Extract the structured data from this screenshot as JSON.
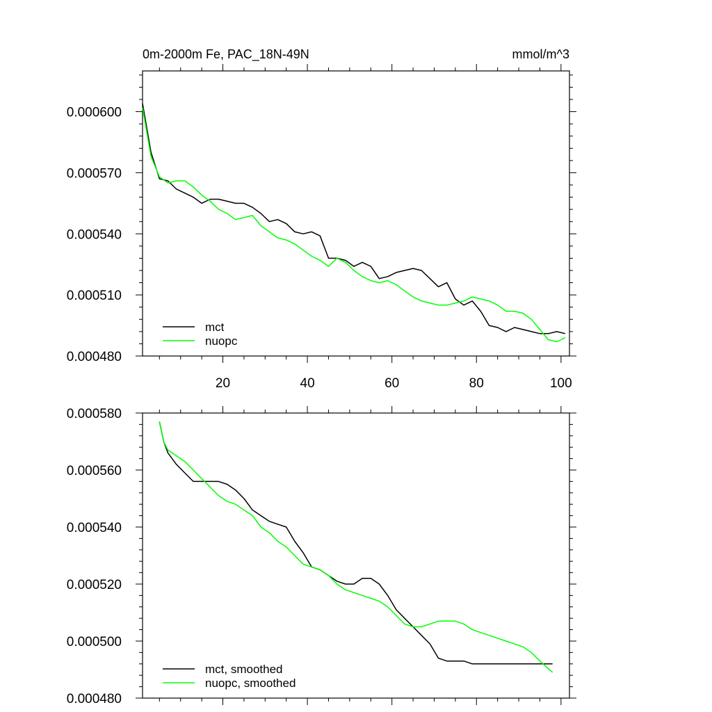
{
  "chart_data": [
    {
      "type": "line",
      "title": "0m-2000m Fe, PAC_18N-49N",
      "units": "mmol/m^3",
      "xlim": [
        1,
        102
      ],
      "ylim": [
        0.00048,
        0.00062
      ],
      "x_ticks": [
        20,
        40,
        60,
        80,
        100
      ],
      "y_ticks": [
        0.00048,
        0.00051,
        0.00054,
        0.00057,
        0.0006
      ],
      "y_tick_labels": [
        "0.000480",
        "0.000510",
        "0.000540",
        "0.000570",
        "0.000600"
      ],
      "x_tick_labels": [
        "20",
        "40",
        "60",
        "80",
        "100"
      ],
      "legend_position": "bottom-left",
      "series": [
        {
          "name": "mct",
          "color": "#000000",
          "x": [
            1,
            3,
            5,
            7,
            9,
            11,
            13,
            15,
            17,
            19,
            21,
            23,
            25,
            27,
            29,
            31,
            33,
            35,
            37,
            39,
            41,
            43,
            45,
            47,
            49,
            51,
            53,
            55,
            57,
            59,
            61,
            63,
            65,
            67,
            69,
            71,
            73,
            75,
            77,
            79,
            81,
            83,
            85,
            87,
            89,
            91,
            93,
            95,
            97,
            99,
            101
          ],
          "y": [
            0.000604,
            0.00058,
            0.000567,
            0.000566,
            0.000562,
            0.00056,
            0.000558,
            0.000555,
            0.000557,
            0.000557,
            0.000556,
            0.000555,
            0.000555,
            0.000553,
            0.00055,
            0.000546,
            0.000547,
            0.000545,
            0.000541,
            0.00054,
            0.000541,
            0.000539,
            0.000528,
            0.000528,
            0.000527,
            0.000524,
            0.000526,
            0.000524,
            0.000518,
            0.000519,
            0.000521,
            0.000522,
            0.000523,
            0.000522,
            0.000518,
            0.000514,
            0.000516,
            0.000508,
            0.000505,
            0.000507,
            0.000502,
            0.000495,
            0.000494,
            0.000492,
            0.000494,
            0.000493,
            0.000492,
            0.000491,
            0.000491,
            0.000492,
            0.000491
          ]
        },
        {
          "name": "nuopc",
          "color": "#00ff00",
          "x": [
            1,
            3,
            5,
            7,
            9,
            11,
            13,
            15,
            17,
            19,
            21,
            23,
            25,
            27,
            29,
            31,
            33,
            35,
            37,
            39,
            41,
            43,
            45,
            47,
            49,
            51,
            53,
            55,
            57,
            59,
            61,
            63,
            65,
            67,
            69,
            71,
            73,
            75,
            77,
            79,
            81,
            83,
            85,
            87,
            89,
            91,
            93,
            95,
            97,
            99,
            101
          ],
          "y": [
            0.000602,
            0.000578,
            0.000568,
            0.000565,
            0.000566,
            0.000566,
            0.000563,
            0.000559,
            0.000556,
            0.000552,
            0.00055,
            0.000547,
            0.000548,
            0.000549,
            0.000544,
            0.000541,
            0.000538,
            0.000537,
            0.000535,
            0.000532,
            0.000529,
            0.000527,
            0.000524,
            0.000528,
            0.000526,
            0.000522,
            0.000519,
            0.000517,
            0.000516,
            0.000517,
            0.000515,
            0.000512,
            0.000509,
            0.000507,
            0.000506,
            0.000505,
            0.000505,
            0.000506,
            0.000507,
            0.000509,
            0.000508,
            0.000507,
            0.000505,
            0.000502,
            0.000502,
            0.000501,
            0.000498,
            0.000493,
            0.000488,
            0.000487,
            0.000489
          ]
        }
      ]
    },
    {
      "type": "line",
      "title": "",
      "xlim": [
        1,
        102
      ],
      "ylim": [
        0.00048,
        0.00058
      ],
      "x_ticks": [
        20,
        40,
        60,
        80,
        100
      ],
      "y_ticks": [
        0.00048,
        0.0005,
        0.00052,
        0.00054,
        0.00056,
        0.00058
      ],
      "y_tick_labels": [
        "0.000480",
        "0.000500",
        "0.000520",
        "0.000540",
        "0.000560",
        "0.000580"
      ],
      "legend_position": "bottom-left",
      "series": [
        {
          "name": "mct, smoothed",
          "color": "#000000",
          "x": [
            5,
            6,
            7,
            9,
            11,
            13,
            15,
            17,
            19,
            21,
            23,
            25,
            27,
            29,
            31,
            33,
            35,
            37,
            39,
            41,
            43,
            45,
            47,
            49,
            51,
            53,
            55,
            57,
            59,
            61,
            63,
            65,
            67,
            69,
            71,
            73,
            75,
            77,
            79,
            81,
            83,
            85,
            87,
            89,
            91,
            93,
            95,
            98
          ],
          "y": [
            0.000577,
            0.00057,
            0.000566,
            0.000562,
            0.000559,
            0.000556,
            0.000556,
            0.000556,
            0.000556,
            0.000555,
            0.000553,
            0.00055,
            0.000546,
            0.000544,
            0.000542,
            0.000541,
            0.00054,
            0.000535,
            0.000531,
            0.000526,
            0.000525,
            0.000523,
            0.000521,
            0.00052,
            0.00052,
            0.000522,
            0.000522,
            0.00052,
            0.000516,
            0.000511,
            0.000508,
            0.000505,
            0.000502,
            0.000499,
            0.000494,
            0.000493,
            0.000493,
            0.000493,
            0.000492,
            0.000492,
            0.000492,
            0.000492,
            0.000492,
            0.000492,
            0.000492,
            0.000492,
            0.000492,
            0.000492
          ]
        },
        {
          "name": "nuopc, smoothed",
          "color": "#00ff00",
          "x": [
            5,
            6,
            7,
            9,
            11,
            13,
            15,
            17,
            19,
            21,
            23,
            25,
            27,
            29,
            31,
            33,
            35,
            37,
            39,
            41,
            43,
            45,
            47,
            49,
            51,
            53,
            55,
            57,
            59,
            61,
            63,
            65,
            67,
            69,
            71,
            73,
            75,
            77,
            79,
            81,
            83,
            85,
            87,
            89,
            91,
            93,
            95,
            98
          ],
          "y": [
            0.000577,
            0.00057,
            0.000567,
            0.000565,
            0.000563,
            0.00056,
            0.000557,
            0.000554,
            0.000551,
            0.000549,
            0.000548,
            0.000546,
            0.000544,
            0.00054,
            0.000538,
            0.000535,
            0.000533,
            0.00053,
            0.000527,
            0.000526,
            0.000525,
            0.000523,
            0.00052,
            0.000518,
            0.000517,
            0.000516,
            0.000515,
            0.000514,
            0.000512,
            0.000509,
            0.000506,
            0.000505,
            0.000505,
            0.000506,
            0.000507,
            0.000507,
            0.000507,
            0.000506,
            0.000504,
            0.000503,
            0.000502,
            0.000501,
            0.0005,
            0.000499,
            0.000498,
            0.000496,
            0.000493,
            0.000489
          ]
        }
      ]
    }
  ]
}
